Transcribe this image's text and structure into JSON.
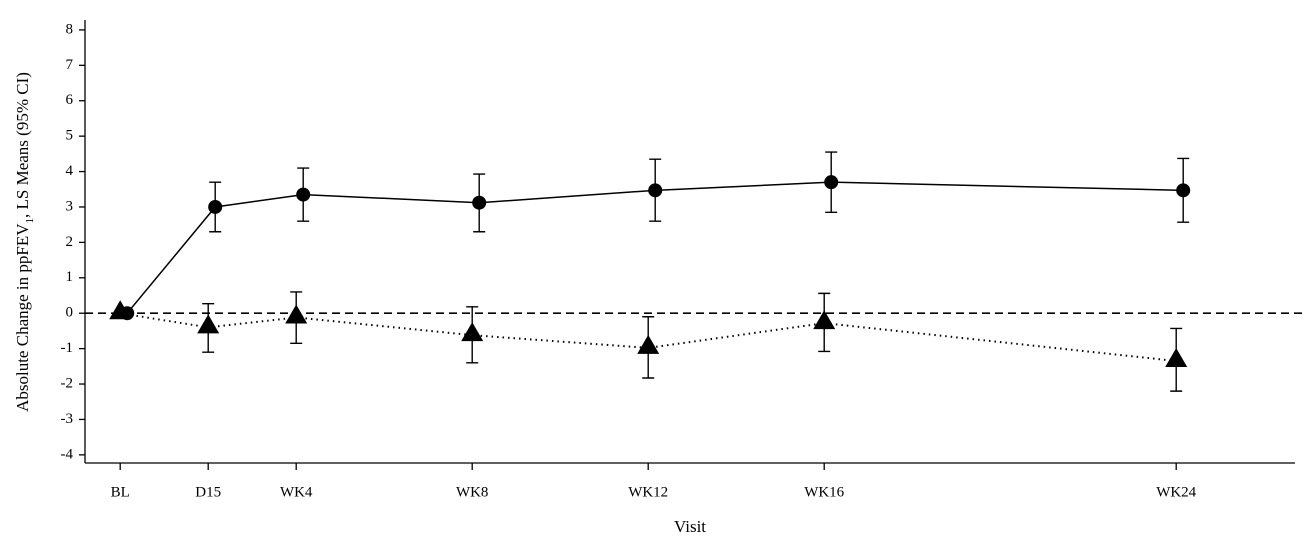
{
  "chart_data": {
    "type": "line",
    "ylabel_parts": [
      "Absolute Change in ppFEV",
      "1",
      ", LS Means (95% CI)"
    ],
    "xlabel": "Visit",
    "x": [
      0,
      2,
      4,
      8,
      12,
      16,
      24
    ],
    "xlim": [
      -0.8,
      26.7
    ],
    "xticks": [
      {
        "value": 0,
        "label": "BL"
      },
      {
        "value": 2,
        "label": "D15"
      },
      {
        "value": 4,
        "label": "WK4"
      },
      {
        "value": 8,
        "label": "WK8"
      },
      {
        "value": 12,
        "label": "WK12"
      },
      {
        "value": 16,
        "label": "WK16"
      },
      {
        "value": 24,
        "label": "WK24"
      }
    ],
    "ylim": [
      -4.23,
      8.28
    ],
    "yticks": [
      -4,
      -3,
      -2,
      -1,
      0,
      1,
      2,
      3,
      4,
      5,
      6,
      7,
      8
    ],
    "hline": 0,
    "series": [
      {
        "color": "#000000",
        "marker": "circle",
        "line_style": "solid",
        "values": [
          0,
          3.0,
          3.35,
          3.12,
          3.47,
          3.7,
          3.47
        ],
        "lower": [
          null,
          2.3,
          2.6,
          2.3,
          2.6,
          2.85,
          2.57
        ],
        "upper": [
          null,
          3.7,
          4.1,
          3.93,
          4.35,
          4.55,
          4.37
        ]
      },
      {
        "color": "#000000",
        "marker": "triangle",
        "line_style": "dotted",
        "values": [
          0,
          -0.4,
          -0.12,
          -0.62,
          -0.98,
          -0.28,
          -1.35
        ],
        "lower": [
          null,
          -1.1,
          -0.85,
          -1.4,
          -1.83,
          -1.08,
          -2.2
        ],
        "upper": [
          null,
          0.27,
          0.6,
          0.18,
          -0.1,
          0.56,
          -0.43
        ]
      }
    ]
  }
}
